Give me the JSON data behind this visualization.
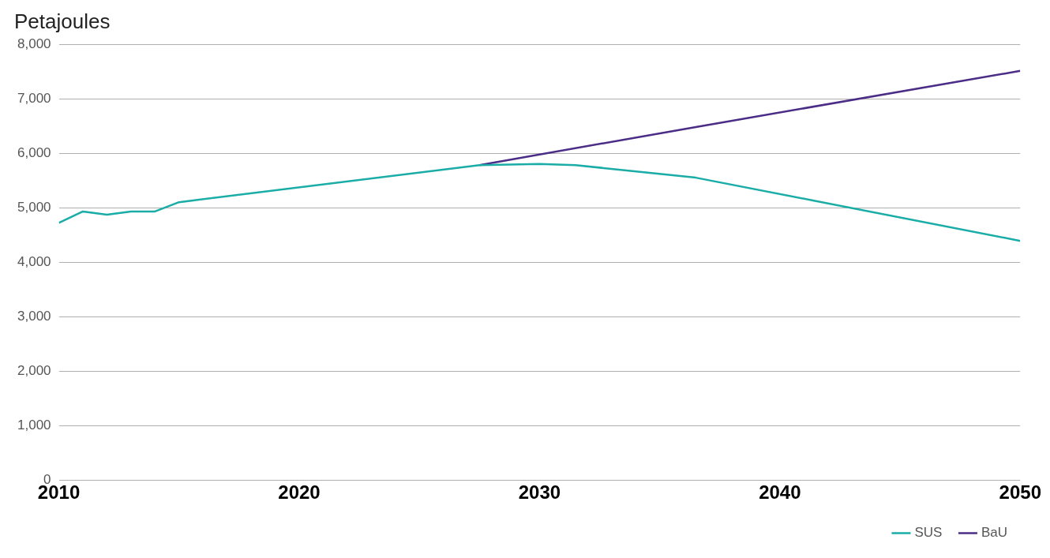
{
  "chart_data": {
    "type": "line",
    "ylabel": "Petajoules",
    "xlim": [
      2010,
      2050
    ],
    "xticks": [
      2010,
      2020,
      2030,
      2040,
      2050
    ],
    "ylim": [
      0,
      8000
    ],
    "yticks": [
      0,
      {
        "value": 1000,
        "label": "1,000"
      },
      {
        "value": 2000,
        "label": "2,000"
      },
      {
        "value": 3000,
        "label": "3,000"
      },
      {
        "value": 4000,
        "label": "4,000"
      },
      {
        "value": 5000,
        "label": "5,000"
      },
      {
        "value": 6000,
        "label": "6,000"
      },
      {
        "value": 7000,
        "label": "7,000"
      },
      {
        "value": 8000,
        "label": "8,000"
      }
    ],
    "grid": "y",
    "legend": "bottom right",
    "marker": "none",
    "line_style": "solid",
    "series": [
      {
        "name": "SUS",
        "color": "#1aaca6",
        "x": [
          2010,
          2011,
          2012,
          2013,
          2014,
          2015,
          2027.5,
          2030,
          2031.5,
          2036.5,
          2050
        ],
        "values": [
          4720,
          4930,
          4870,
          4930,
          4930,
          5100,
          5780,
          5800,
          5780,
          5550,
          4390
        ]
      },
      {
        "name": "BaU",
        "color": "#4b2c86",
        "x": [
          2027.5,
          2036.5,
          2050
        ],
        "values": [
          5780,
          6480,
          7510
        ]
      }
    ]
  }
}
